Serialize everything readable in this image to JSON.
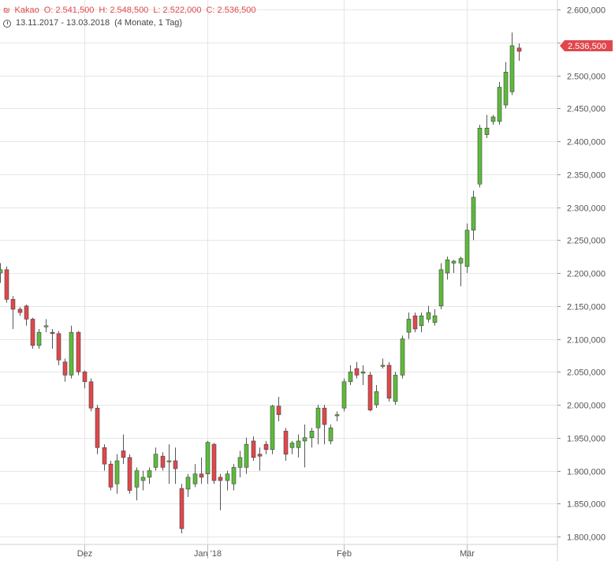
{
  "header": {
    "instrument_icon": "candlestick-icon",
    "instrument": "Kakao",
    "open": "O: 2.541,500",
    "high": "H: 2.548,500",
    "low": "L: 2.522,000",
    "close": "C: 2.536,500",
    "range": "13.11.2017 - 13.03.2018",
    "period": "(4 Monate, 1 Tag)"
  },
  "price_label": "2.536,500",
  "colors": {
    "up": "#5dbb3a",
    "down": "#e0474c",
    "grid": "#e6e6e6",
    "axis_text": "#555555"
  },
  "chart_data": {
    "type": "candlestick",
    "y_range": [
      1790,
      2610
    ],
    "y_ticks": [
      "1.800,000",
      "1.850,000",
      "1.900,000",
      "1.950,000",
      "2.000,000",
      "2.050,000",
      "2.100,000",
      "2.150,000",
      "2.200,000",
      "2.250,000",
      "2.300,000",
      "2.350,000",
      "2.400,000",
      "2.450,000",
      "2.500,000",
      "2.550,000",
      "2.600,000"
    ],
    "x_labels": [
      "Dez",
      "Jan '18",
      "Feb",
      "Mär"
    ],
    "x_label_index": [
      13,
      32,
      53,
      72
    ],
    "grid": true,
    "candles": [
      {
        "o": 2200,
        "h": 2215,
        "l": 2185,
        "c": 2205
      },
      {
        "o": 2205,
        "h": 2210,
        "l": 2155,
        "c": 2160
      },
      {
        "o": 2160,
        "h": 2165,
        "l": 2115,
        "c": 2145
      },
      {
        "o": 2145,
        "h": 2148,
        "l": 2135,
        "c": 2140
      },
      {
        "o": 2150,
        "h": 2152,
        "l": 2120,
        "c": 2130
      },
      {
        "o": 2130,
        "h": 2132,
        "l": 2085,
        "c": 2090
      },
      {
        "o": 2090,
        "h": 2115,
        "l": 2085,
        "c": 2110
      },
      {
        "o": 2120,
        "h": 2130,
        "l": 2110,
        "c": 2120
      },
      {
        "o": 2110,
        "h": 2115,
        "l": 2085,
        "c": 2108
      },
      {
        "o": 2108,
        "h": 2112,
        "l": 2060,
        "c": 2068
      },
      {
        "o": 2065,
        "h": 2070,
        "l": 2035,
        "c": 2045
      },
      {
        "o": 2045,
        "h": 2120,
        "l": 2040,
        "c": 2110
      },
      {
        "o": 2110,
        "h": 2112,
        "l": 2045,
        "c": 2050
      },
      {
        "o": 2050,
        "h": 2052,
        "l": 2025,
        "c": 2035
      },
      {
        "o": 2035,
        "h": 2040,
        "l": 1990,
        "c": 1995
      },
      {
        "o": 1995,
        "h": 2000,
        "l": 1925,
        "c": 1935
      },
      {
        "o": 1935,
        "h": 1940,
        "l": 1900,
        "c": 1910
      },
      {
        "o": 1910,
        "h": 1915,
        "l": 1870,
        "c": 1875
      },
      {
        "o": 1880,
        "h": 1925,
        "l": 1865,
        "c": 1915
      },
      {
        "o": 1930,
        "h": 1955,
        "l": 1910,
        "c": 1920
      },
      {
        "o": 1920,
        "h": 1925,
        "l": 1865,
        "c": 1870
      },
      {
        "o": 1875,
        "h": 1905,
        "l": 1855,
        "c": 1900
      },
      {
        "o": 1885,
        "h": 1900,
        "l": 1870,
        "c": 1890
      },
      {
        "o": 1890,
        "h": 1905,
        "l": 1880,
        "c": 1900
      },
      {
        "o": 1905,
        "h": 1935,
        "l": 1900,
        "c": 1925
      },
      {
        "o": 1922,
        "h": 1928,
        "l": 1900,
        "c": 1905
      },
      {
        "o": 1915,
        "h": 1940,
        "l": 1880,
        "c": 1915
      },
      {
        "o": 1915,
        "h": 1935,
        "l": 1880,
        "c": 1903
      },
      {
        "o": 1873,
        "h": 1880,
        "l": 1805,
        "c": 1812
      },
      {
        "o": 1872,
        "h": 1895,
        "l": 1860,
        "c": 1890
      },
      {
        "o": 1880,
        "h": 1910,
        "l": 1875,
        "c": 1895
      },
      {
        "o": 1895,
        "h": 1920,
        "l": 1880,
        "c": 1890
      },
      {
        "o": 1895,
        "h": 1945,
        "l": 1880,
        "c": 1943
      },
      {
        "o": 1940,
        "h": 1942,
        "l": 1880,
        "c": 1885
      },
      {
        "o": 1890,
        "h": 1895,
        "l": 1840,
        "c": 1885
      },
      {
        "o": 1885,
        "h": 1900,
        "l": 1870,
        "c": 1895
      },
      {
        "o": 1880,
        "h": 1910,
        "l": 1870,
        "c": 1905
      },
      {
        "o": 1905,
        "h": 1930,
        "l": 1890,
        "c": 1920
      },
      {
        "o": 1905,
        "h": 1950,
        "l": 1895,
        "c": 1940
      },
      {
        "o": 1945,
        "h": 1952,
        "l": 1915,
        "c": 1920
      },
      {
        "o": 1925,
        "h": 1935,
        "l": 1900,
        "c": 1922
      },
      {
        "o": 1940,
        "h": 1945,
        "l": 1925,
        "c": 1932
      },
      {
        "o": 1932,
        "h": 2000,
        "l": 1925,
        "c": 1998
      },
      {
        "o": 1998,
        "h": 2012,
        "l": 1975,
        "c": 1985
      },
      {
        "o": 1960,
        "h": 1965,
        "l": 1915,
        "c": 1925
      },
      {
        "o": 1935,
        "h": 1945,
        "l": 1925,
        "c": 1942
      },
      {
        "o": 1935,
        "h": 1955,
        "l": 1920,
        "c": 1945
      },
      {
        "o": 1945,
        "h": 1970,
        "l": 1905,
        "c": 1950
      },
      {
        "o": 1950,
        "h": 1965,
        "l": 1935,
        "c": 1960
      },
      {
        "o": 1965,
        "h": 2000,
        "l": 1940,
        "c": 1995
      },
      {
        "o": 1995,
        "h": 2000,
        "l": 1940,
        "c": 1970
      },
      {
        "o": 1945,
        "h": 1970,
        "l": 1940,
        "c": 1965
      },
      {
        "o": 1985,
        "h": 1990,
        "l": 1975,
        "c": 1985
      },
      {
        "o": 1995,
        "h": 2040,
        "l": 1990,
        "c": 2035
      },
      {
        "o": 2035,
        "h": 2060,
        "l": 2030,
        "c": 2050
      },
      {
        "o": 2055,
        "h": 2065,
        "l": 2040,
        "c": 2045
      },
      {
        "o": 2048,
        "h": 2060,
        "l": 2030,
        "c": 2050
      },
      {
        "o": 2045,
        "h": 2050,
        "l": 1990,
        "c": 1992
      },
      {
        "o": 2000,
        "h": 2030,
        "l": 1995,
        "c": 2020
      },
      {
        "o": 2060,
        "h": 2070,
        "l": 2055,
        "c": 2060
      },
      {
        "o": 2060,
        "h": 2065,
        "l": 2005,
        "c": 2010
      },
      {
        "o": 2005,
        "h": 2050,
        "l": 2000,
        "c": 2045
      },
      {
        "o": 2045,
        "h": 2105,
        "l": 2040,
        "c": 2100
      },
      {
        "o": 2110,
        "h": 2140,
        "l": 2100,
        "c": 2130
      },
      {
        "o": 2135,
        "h": 2140,
        "l": 2110,
        "c": 2115
      },
      {
        "o": 2120,
        "h": 2140,
        "l": 2110,
        "c": 2135
      },
      {
        "o": 2130,
        "h": 2150,
        "l": 2125,
        "c": 2140
      },
      {
        "o": 2125,
        "h": 2145,
        "l": 2120,
        "c": 2135
      },
      {
        "o": 2150,
        "h": 2215,
        "l": 2145,
        "c": 2205
      },
      {
        "o": 2200,
        "h": 2225,
        "l": 2190,
        "c": 2220
      },
      {
        "o": 2215,
        "h": 2220,
        "l": 2200,
        "c": 2218
      },
      {
        "o": 2215,
        "h": 2225,
        "l": 2180,
        "c": 2222
      },
      {
        "o": 2210,
        "h": 2275,
        "l": 2200,
        "c": 2265
      },
      {
        "o": 2265,
        "h": 2325,
        "l": 2250,
        "c": 2315
      },
      {
        "o": 2335,
        "h": 2425,
        "l": 2330,
        "c": 2420
      },
      {
        "o": 2410,
        "h": 2440,
        "l": 2405,
        "c": 2420
      },
      {
        "o": 2430,
        "h": 2440,
        "l": 2425,
        "c": 2437
      },
      {
        "o": 2430,
        "h": 2490,
        "l": 2425,
        "c": 2482
      },
      {
        "o": 2455,
        "h": 2520,
        "l": 2450,
        "c": 2505
      },
      {
        "o": 2475,
        "h": 2565,
        "l": 2470,
        "c": 2545
      },
      {
        "o": 2541.5,
        "h": 2548.5,
        "l": 2522,
        "c": 2536.5
      }
    ]
  }
}
